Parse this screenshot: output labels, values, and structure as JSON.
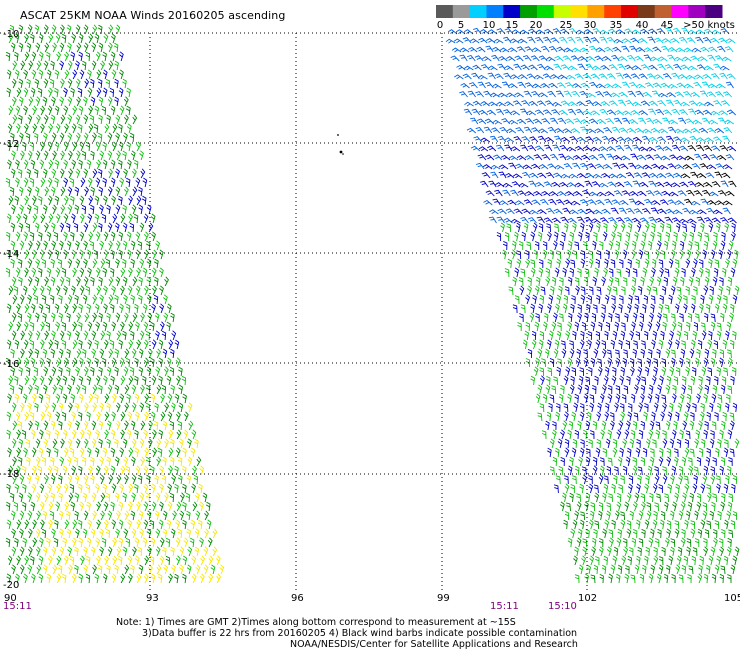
{
  "header": {
    "title": "ASCAT 25KM NOAA Winds 20160205 ascending"
  },
  "legend": {
    "ticks": [
      "0",
      "5",
      "10",
      "15",
      "20",
      "25",
      "30",
      "35",
      "40",
      "45",
      ">50 knots"
    ],
    "bins": [
      {
        "range": "0-5",
        "color": "#5a5a5a"
      },
      {
        "range": "0-5",
        "color": "#9a9a9a"
      },
      {
        "range": "5-10",
        "color": "#00cfff"
      },
      {
        "range": "5-10",
        "color": "#0080ff"
      },
      {
        "range": "10-15",
        "color": "#0000c8"
      },
      {
        "range": "10-15",
        "color": "#00a000"
      },
      {
        "range": "15-20",
        "color": "#00e000"
      },
      {
        "range": "15-20",
        "color": "#c8ff00"
      },
      {
        "range": "20-25",
        "color": "#ffe000"
      },
      {
        "range": "25-30",
        "color": "#ffa000"
      },
      {
        "range": "30-35",
        "color": "#ff4000"
      },
      {
        "range": "35-40",
        "color": "#e00000"
      },
      {
        "range": "40-45",
        "color": "#7a3a1a"
      },
      {
        "range": "40-45",
        "color": "#c06030"
      },
      {
        "range": "45-50",
        "color": "#ff00ff"
      },
      {
        "range": "45-50",
        "color": "#a000c0"
      },
      {
        "range": ">50",
        "color": "#4a0080"
      }
    ]
  },
  "map": {
    "lat_labels": [
      "-10",
      "-12",
      "-14",
      "-16",
      "-18",
      "-20"
    ],
    "lon_labels": [
      "90",
      "93",
      "96",
      "99",
      "102",
      "105"
    ],
    "time_labels": [
      "15:11",
      "15:11",
      "15:10"
    ],
    "gridline_color": "#000000"
  },
  "notes": {
    "line1": "Note: 1) Times are GMT 2)Times along bottom correspond to measurement at ~15S",
    "line2": "3)Data buffer is 22 hrs from 20160205 4) Black wind barbs indicate possible contamination",
    "line3": "NOAA/NESDIS/Center for Satellite Applications and Research"
  },
  "swath_colors": {
    "dark_green": "#008a00",
    "green": "#10c010",
    "blue": "#0000c8",
    "yellow": "#f8e800",
    "cyan": "#00d0e8",
    "steel_blue": "#0060e0",
    "black": "#000000"
  }
}
